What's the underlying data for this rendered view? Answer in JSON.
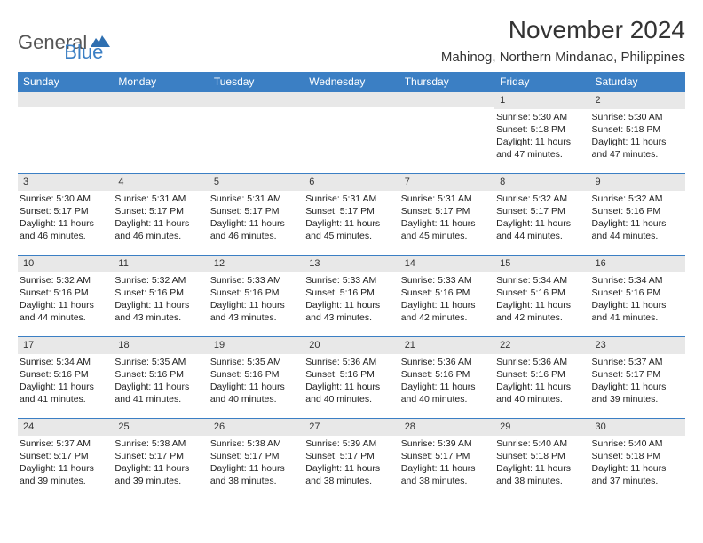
{
  "logo": {
    "part1": "General",
    "part2": "Blue",
    "mark_color": "#2f6fb0"
  },
  "title": "November 2024",
  "location": "Mahinog, Northern Mindanao, Philippines",
  "colors": {
    "header_bg": "#3b7fc4",
    "daynum_bg": "#e8e8e8",
    "rule": "#3b7fc4"
  },
  "weekdays": [
    "Sunday",
    "Monday",
    "Tuesday",
    "Wednesday",
    "Thursday",
    "Friday",
    "Saturday"
  ],
  "weeks": [
    [
      {
        "n": "",
        "lines": []
      },
      {
        "n": "",
        "lines": []
      },
      {
        "n": "",
        "lines": []
      },
      {
        "n": "",
        "lines": []
      },
      {
        "n": "",
        "lines": []
      },
      {
        "n": "1",
        "lines": [
          "Sunrise: 5:30 AM",
          "Sunset: 5:18 PM",
          "Daylight: 11 hours and 47 minutes."
        ]
      },
      {
        "n": "2",
        "lines": [
          "Sunrise: 5:30 AM",
          "Sunset: 5:18 PM",
          "Daylight: 11 hours and 47 minutes."
        ]
      }
    ],
    [
      {
        "n": "3",
        "lines": [
          "Sunrise: 5:30 AM",
          "Sunset: 5:17 PM",
          "Daylight: 11 hours and 46 minutes."
        ]
      },
      {
        "n": "4",
        "lines": [
          "Sunrise: 5:31 AM",
          "Sunset: 5:17 PM",
          "Daylight: 11 hours and 46 minutes."
        ]
      },
      {
        "n": "5",
        "lines": [
          "Sunrise: 5:31 AM",
          "Sunset: 5:17 PM",
          "Daylight: 11 hours and 46 minutes."
        ]
      },
      {
        "n": "6",
        "lines": [
          "Sunrise: 5:31 AM",
          "Sunset: 5:17 PM",
          "Daylight: 11 hours and 45 minutes."
        ]
      },
      {
        "n": "7",
        "lines": [
          "Sunrise: 5:31 AM",
          "Sunset: 5:17 PM",
          "Daylight: 11 hours and 45 minutes."
        ]
      },
      {
        "n": "8",
        "lines": [
          "Sunrise: 5:32 AM",
          "Sunset: 5:17 PM",
          "Daylight: 11 hours and 44 minutes."
        ]
      },
      {
        "n": "9",
        "lines": [
          "Sunrise: 5:32 AM",
          "Sunset: 5:16 PM",
          "Daylight: 11 hours and 44 minutes."
        ]
      }
    ],
    [
      {
        "n": "10",
        "lines": [
          "Sunrise: 5:32 AM",
          "Sunset: 5:16 PM",
          "Daylight: 11 hours and 44 minutes."
        ]
      },
      {
        "n": "11",
        "lines": [
          "Sunrise: 5:32 AM",
          "Sunset: 5:16 PM",
          "Daylight: 11 hours and 43 minutes."
        ]
      },
      {
        "n": "12",
        "lines": [
          "Sunrise: 5:33 AM",
          "Sunset: 5:16 PM",
          "Daylight: 11 hours and 43 minutes."
        ]
      },
      {
        "n": "13",
        "lines": [
          "Sunrise: 5:33 AM",
          "Sunset: 5:16 PM",
          "Daylight: 11 hours and 43 minutes."
        ]
      },
      {
        "n": "14",
        "lines": [
          "Sunrise: 5:33 AM",
          "Sunset: 5:16 PM",
          "Daylight: 11 hours and 42 minutes."
        ]
      },
      {
        "n": "15",
        "lines": [
          "Sunrise: 5:34 AM",
          "Sunset: 5:16 PM",
          "Daylight: 11 hours and 42 minutes."
        ]
      },
      {
        "n": "16",
        "lines": [
          "Sunrise: 5:34 AM",
          "Sunset: 5:16 PM",
          "Daylight: 11 hours and 41 minutes."
        ]
      }
    ],
    [
      {
        "n": "17",
        "lines": [
          "Sunrise: 5:34 AM",
          "Sunset: 5:16 PM",
          "Daylight: 11 hours and 41 minutes."
        ]
      },
      {
        "n": "18",
        "lines": [
          "Sunrise: 5:35 AM",
          "Sunset: 5:16 PM",
          "Daylight: 11 hours and 41 minutes."
        ]
      },
      {
        "n": "19",
        "lines": [
          "Sunrise: 5:35 AM",
          "Sunset: 5:16 PM",
          "Daylight: 11 hours and 40 minutes."
        ]
      },
      {
        "n": "20",
        "lines": [
          "Sunrise: 5:36 AM",
          "Sunset: 5:16 PM",
          "Daylight: 11 hours and 40 minutes."
        ]
      },
      {
        "n": "21",
        "lines": [
          "Sunrise: 5:36 AM",
          "Sunset: 5:16 PM",
          "Daylight: 11 hours and 40 minutes."
        ]
      },
      {
        "n": "22",
        "lines": [
          "Sunrise: 5:36 AM",
          "Sunset: 5:16 PM",
          "Daylight: 11 hours and 40 minutes."
        ]
      },
      {
        "n": "23",
        "lines": [
          "Sunrise: 5:37 AM",
          "Sunset: 5:17 PM",
          "Daylight: 11 hours and 39 minutes."
        ]
      }
    ],
    [
      {
        "n": "24",
        "lines": [
          "Sunrise: 5:37 AM",
          "Sunset: 5:17 PM",
          "Daylight: 11 hours and 39 minutes."
        ]
      },
      {
        "n": "25",
        "lines": [
          "Sunrise: 5:38 AM",
          "Sunset: 5:17 PM",
          "Daylight: 11 hours and 39 minutes."
        ]
      },
      {
        "n": "26",
        "lines": [
          "Sunrise: 5:38 AM",
          "Sunset: 5:17 PM",
          "Daylight: 11 hours and 38 minutes."
        ]
      },
      {
        "n": "27",
        "lines": [
          "Sunrise: 5:39 AM",
          "Sunset: 5:17 PM",
          "Daylight: 11 hours and 38 minutes."
        ]
      },
      {
        "n": "28",
        "lines": [
          "Sunrise: 5:39 AM",
          "Sunset: 5:17 PM",
          "Daylight: 11 hours and 38 minutes."
        ]
      },
      {
        "n": "29",
        "lines": [
          "Sunrise: 5:40 AM",
          "Sunset: 5:18 PM",
          "Daylight: 11 hours and 38 minutes."
        ]
      },
      {
        "n": "30",
        "lines": [
          "Sunrise: 5:40 AM",
          "Sunset: 5:18 PM",
          "Daylight: 11 hours and 37 minutes."
        ]
      }
    ]
  ]
}
